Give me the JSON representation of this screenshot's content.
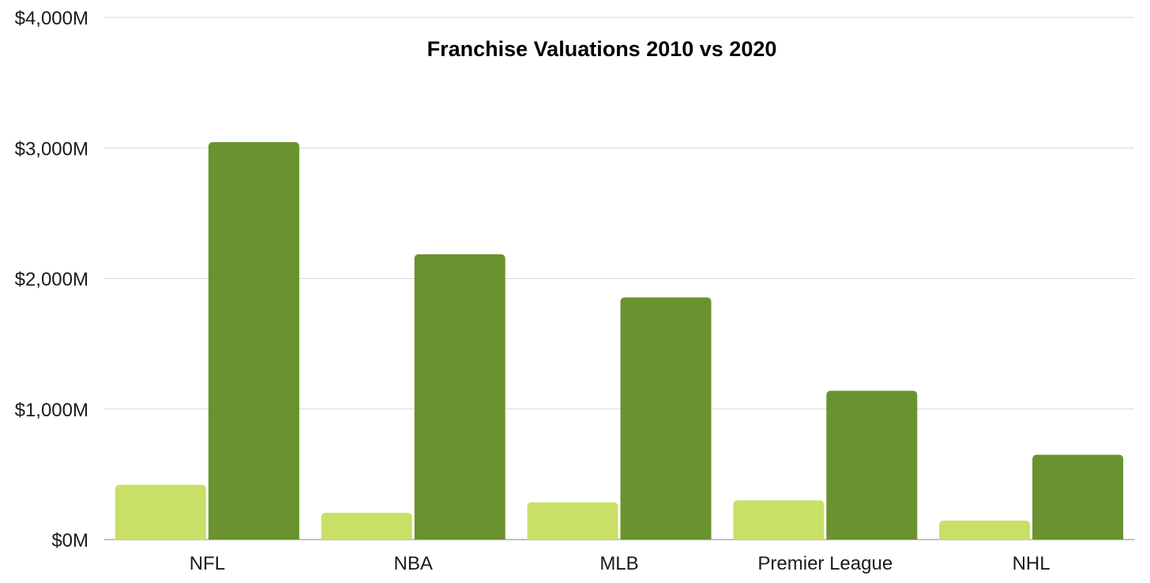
{
  "chart_data": {
    "type": "bar",
    "title": "Franchise Valuations 2010 vs 2020",
    "xlabel": "",
    "ylabel": "",
    "categories": [
      "NFL",
      "NBA",
      "MLB",
      "Premier League",
      "NHL"
    ],
    "series": [
      {
        "name": "2010",
        "color": "#c8e066",
        "values": [
          420,
          205,
          285,
          300,
          145
        ]
      },
      {
        "name": "2020",
        "color": "#6a922e",
        "values": [
          3045,
          2185,
          1855,
          1140,
          650
        ]
      }
    ],
    "ylim": [
      0,
      4000
    ],
    "yticks": [
      0,
      1000,
      2000,
      3000,
      4000
    ],
    "ytick_labels": [
      "$0M",
      "$1,000M",
      "$2,000M",
      "$3,000M",
      "$4,000M"
    ],
    "grid": true,
    "legend": "none"
  }
}
